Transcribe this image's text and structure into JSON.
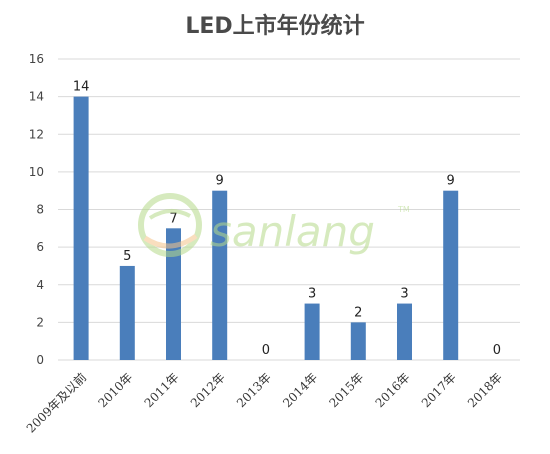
{
  "chart_data": {
    "type": "bar",
    "title": "LED上市年份统计",
    "categories": [
      "2009年及以前",
      "2010年",
      "2011年",
      "2012年",
      "2013年",
      "2014年",
      "2015年",
      "2016年",
      "2017年",
      "2018年"
    ],
    "values": [
      14,
      5,
      7,
      9,
      0,
      3,
      2,
      3,
      9,
      0
    ],
    "xlabel": "",
    "ylabel": "",
    "ylim": [
      0,
      16
    ],
    "yticks": [
      0,
      2,
      4,
      6,
      8,
      10,
      12,
      14,
      16
    ],
    "grid": true,
    "legend": "none",
    "bar_color": "#4a7ebb"
  },
  "watermark": {
    "text": "sanlang",
    "superscript": "TM",
    "color": "#b5d98a",
    "accent": "#f5c48a"
  }
}
